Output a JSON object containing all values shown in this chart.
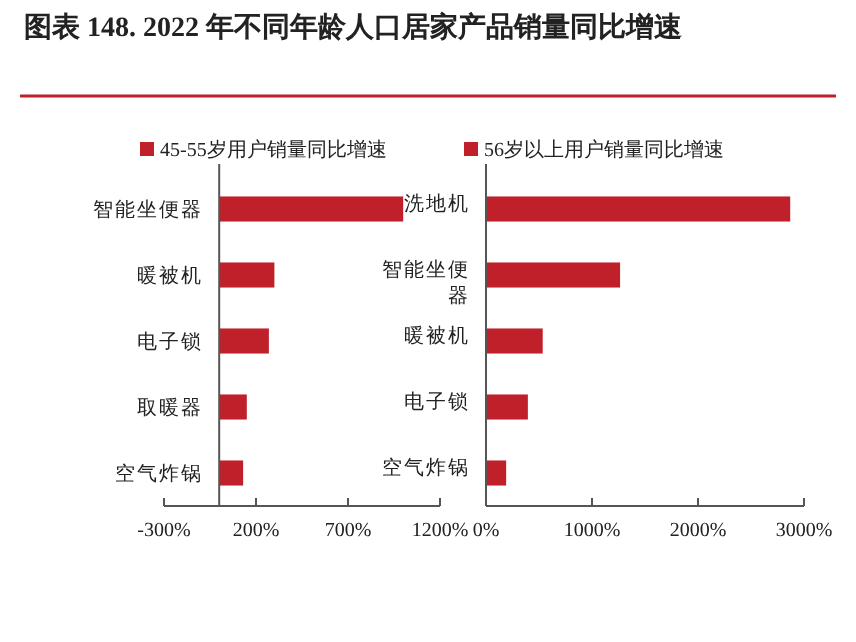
{
  "chart_data": [
    {
      "type": "bar",
      "orientation": "horizontal",
      "title": "图表 148.  2022 年不同年龄人口居家产品销量同比增速",
      "categories": [
        "智能坐便器",
        "暖被机",
        "电子锁",
        "取暖器",
        "空气炸锅"
      ],
      "series": [
        {
          "name": "45-55岁用户销量同比增速",
          "color": "#c0202a",
          "values": [
            1000,
            300,
            270,
            150,
            130
          ]
        }
      ],
      "xlim": [
        -300,
        1200
      ],
      "xticks": [
        {
          "value": -300,
          "label": "-300%"
        },
        {
          "value": 200,
          "label": "200%"
        },
        {
          "value": 700,
          "label": "700%"
        },
        {
          "value": 1200,
          "label": "1200%"
        }
      ],
      "legend": "top left",
      "grid": false
    },
    {
      "type": "bar",
      "orientation": "horizontal",
      "categories": [
        "洗地机",
        "智能坐便器",
        "暖被机",
        "电子锁",
        "空气炸锅"
      ],
      "series": [
        {
          "name": "56岁以上用户销量同比增速",
          "color": "#c0202a",
          "values": [
            2870,
            1265,
            535,
            395,
            190
          ]
        }
      ],
      "xlim": [
        0,
        3000
      ],
      "xticks": [
        {
          "value": 0,
          "label": "0%"
        },
        {
          "value": 1000,
          "label": "1000%"
        },
        {
          "value": 2000,
          "label": "2000%"
        },
        {
          "value": 3000,
          "label": "3000%"
        }
      ],
      "legend": "top left",
      "grid": false
    }
  ]
}
